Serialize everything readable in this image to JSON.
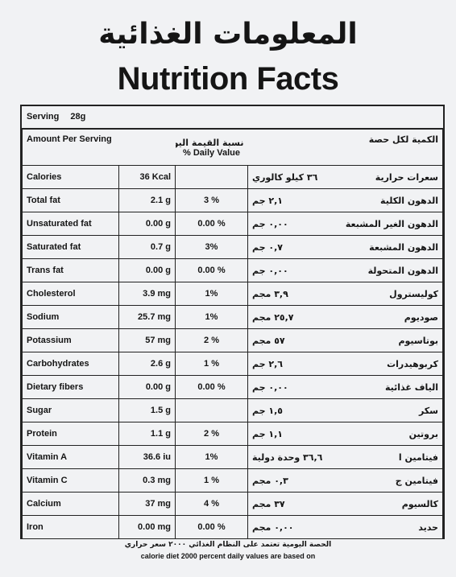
{
  "header": {
    "title_ar": "المعلومات الغذائية",
    "title": "Nutrition Facts"
  },
  "serving": {
    "label": "Serving",
    "value": "28g"
  },
  "table": {
    "columns": {
      "amount": "Amount Per Serving",
      "daily_value_ar": "نسبة القيمة اليومية",
      "daily_value": "% Daily Value",
      "amount_ar": "الكمية لكل حصة"
    },
    "rows": [
      {
        "name": "Calories",
        "amount": "36 Kcal",
        "name_ar": "سعرات حرارية",
        "amount_ar": "٣٦ كيلو كالوري"
      },
      {
        "name": "Total fat",
        "amount": "2.1 g",
        "daily_value": "3 %",
        "name_ar": "الدهون الكلية",
        "amount_ar": "٢,١ جم"
      },
      {
        "name": "Unsaturated fat",
        "amount": "0.00 g",
        "daily_value": "0.00 %",
        "name_ar": "الدهون الغير المشبعة",
        "amount_ar": "٠,٠٠ جم"
      },
      {
        "name": "Saturated fat",
        "amount": "0.7 g",
        "daily_value": "3%",
        "name_ar": "الدهون المشبعة",
        "amount_ar": "٠,٧ جم"
      },
      {
        "name": "Trans fat",
        "amount": "0.00 g",
        "daily_value": "0.00 %",
        "name_ar": "الدهون المتحولة",
        "amount_ar": "٠,٠٠ جم"
      },
      {
        "name": "Cholesterol",
        "amount": "3.9 mg",
        "daily_value": "1%",
        "name_ar": "كوليسترول",
        "amount_ar": "٣,٩ مجم"
      },
      {
        "name": "Sodium",
        "amount": "25.7 mg",
        "daily_value": "1%",
        "name_ar": "صوديوم",
        "amount_ar": "٢٥,٧ مجم"
      },
      {
        "name": "Potassium",
        "amount": "57 mg",
        "daily_value": "2 %",
        "name_ar": "بوتاسيوم",
        "amount_ar": "٥٧ مجم"
      },
      {
        "name": "Carbohydrates",
        "amount": "2.6 g",
        "daily_value": "1 %",
        "name_ar": "كربوهيدرات",
        "amount_ar": "٢,٦ جم"
      },
      {
        "name": "Dietary fibers",
        "amount": "0.00 g",
        "daily_value": "0.00 %",
        "name_ar": "الياف غذائية",
        "amount_ar": "٠,٠٠ جم"
      },
      {
        "name": "Sugar",
        "amount": "1.5 g",
        "name_ar": "سكر",
        "amount_ar": "١,٥ جم"
      },
      {
        "name": "Protein",
        "amount": "1.1 g",
        "daily_value": "2 %",
        "name_ar": "بروتين",
        "amount_ar": "١,١ جم"
      },
      {
        "name": "Vitamin A",
        "amount": "36.6 iu",
        "daily_value": "1%",
        "name_ar": "فيتامين ا",
        "amount_ar": "٣٦,٦ وحدة دولية"
      },
      {
        "name": "Vitamin C",
        "amount": "0.3 mg",
        "daily_value": "1 %",
        "name_ar": "فيتامين ج",
        "amount_ar": "٠,٣ مجم"
      },
      {
        "name": "Calcium",
        "amount": "37 mg",
        "daily_value": "4 %",
        "name_ar": "كالسيوم",
        "amount_ar": "٣٧ مجم"
      },
      {
        "name": "Iron",
        "amount": "0.00 mg",
        "daily_value": "0.00 %",
        "name_ar": "حديد",
        "amount_ar": "٠,٠٠ مجم"
      }
    ]
  },
  "footer": {
    "note_ar": "الحصة اليومية تعتمد على النظام الغذائي ٢٠٠٠ سعر حراري",
    "note": "calorie diet 2000 percent daily values are based on"
  }
}
